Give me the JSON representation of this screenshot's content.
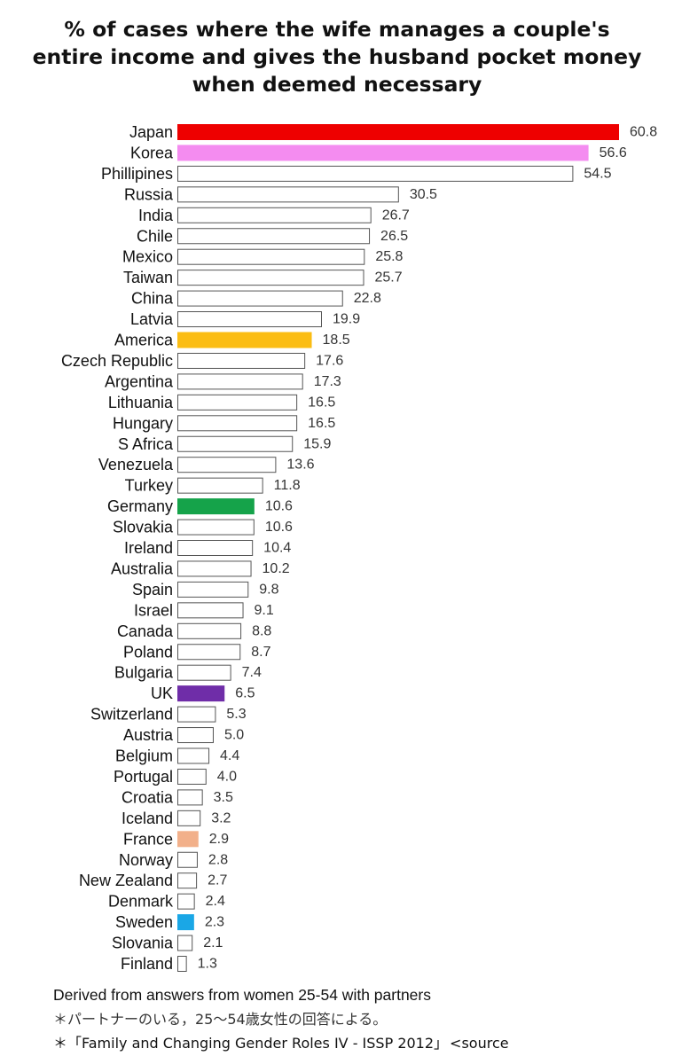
{
  "chart_data": {
    "type": "bar",
    "orientation": "horizontal",
    "title_lines": [
      "% of cases where the wife manages a couple's",
      "entire income and gives the husband pocket money",
      "when deemed necessary"
    ],
    "categories": [
      "Japan",
      "Korea",
      "Phillipines",
      "Russia",
      "India",
      "Chile",
      "Mexico",
      "Taiwan",
      "China",
      "Latvia",
      "America",
      "Czech Republic",
      "Argentina",
      "Lithuania",
      "Hungary",
      "S Africa",
      "Venezuela",
      "Turkey",
      "Germany",
      "Slovakia",
      "Ireland",
      "Australia",
      "Spain",
      "Israel",
      "Canada",
      "Poland",
      "Bulgaria",
      "UK",
      "Switzerland",
      "Austria",
      "Belgium",
      "Portugal",
      "Croatia",
      "Iceland",
      "France",
      "Norway",
      "New Zealand",
      "Denmark",
      "Sweden",
      "Slovania",
      "Finland"
    ],
    "values": [
      60.8,
      56.6,
      54.5,
      30.5,
      26.7,
      26.5,
      25.8,
      25.7,
      22.8,
      19.9,
      18.5,
      17.6,
      17.3,
      16.5,
      16.5,
      15.9,
      13.6,
      11.8,
      10.6,
      10.6,
      10.4,
      10.2,
      9.8,
      9.1,
      8.8,
      8.7,
      7.4,
      6.5,
      5.3,
      5.0,
      4.4,
      4.0,
      3.5,
      3.2,
      2.9,
      2.8,
      2.7,
      2.4,
      2.3,
      2.1,
      1.3
    ],
    "value_labels": [
      "60.8",
      "56.6",
      "54.5",
      "30.5",
      "26.7",
      "26.5",
      "25.8",
      "25.7",
      "22.8",
      "19.9",
      "18.5",
      "17.6",
      "17.3",
      "16.5",
      "16.5",
      "15.9",
      "13.6",
      "11.8",
      "10.6",
      "10.6",
      "10.4",
      "10.2",
      "9.8",
      "9.1",
      "8.8",
      "8.7",
      "7.4",
      "6.5",
      "5.3",
      "5.0",
      "4.4",
      "4.0",
      "3.5",
      "3.2",
      "2.9",
      "2.8",
      "2.7",
      "2.4",
      "2.3",
      "2.1",
      "1.3"
    ],
    "highlight_colors": {
      "Japan": "#ee0000",
      "Korea": "#f48cf0",
      "America": "#fbbd13",
      "Germany": "#15a34a",
      "UK": "#6f2da8",
      "France": "#f2b08a",
      "Sweden": "#1aa7e6"
    },
    "default_fill": "#ffffff",
    "bar_outline": "#555555",
    "xlim": [
      0,
      60.8
    ],
    "grid": false,
    "legend": "none"
  },
  "notes": {
    "en": "Derived from answers from women 25-54 with partners",
    "jp": "＊パートナーのいる，25～54歳女性の回答による。",
    "source": "＊「Family and Changing Gender Roles IV - ISSP 2012」",
    "source_suffix": "<source"
  }
}
